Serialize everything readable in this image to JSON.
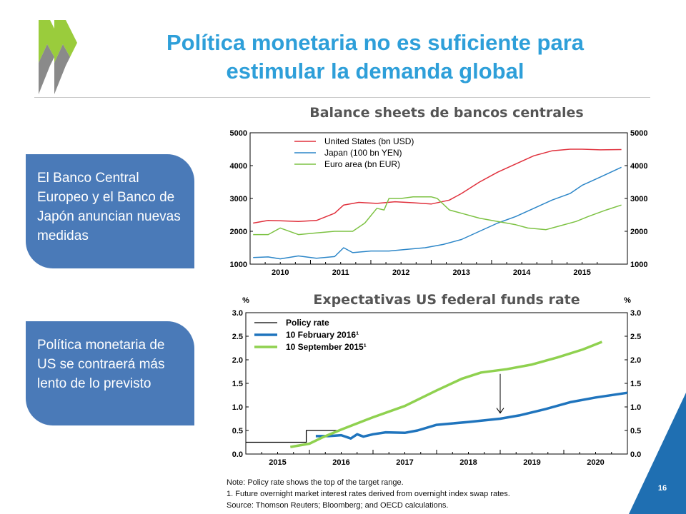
{
  "slide": {
    "title_line1": "Política monetaria no es suficiente para",
    "title_line2": "estimular la demanda global",
    "page_number": "16",
    "accent_color": "#2e9fd9",
    "pill_color": "#4a7ab8",
    "corner_color": "#1f6fb2"
  },
  "callouts": [
    {
      "text": "El Banco Central Europeo y el Banco de Japón anuncian nuevas medidas"
    },
    {
      "text": "Política monetaria de US se contraerá más lento de lo previsto"
    }
  ],
  "notes": {
    "line1": "Note: Policy rate shows the top of the target range.",
    "line2": "1. Future overnight market interest rates derived from overnight index swap rates.",
    "line3": "Source: Thomson Reuters; Bloomberg; and OECD calculations."
  },
  "chart_data": [
    {
      "type": "line",
      "title": "Balance sheets de bancos centrales",
      "ylim": [
        1000,
        5000
      ],
      "yticks": [
        "1000",
        "2000",
        "3000",
        "4000",
        "5000"
      ],
      "xlim": [
        2009.5,
        2015.75
      ],
      "xticks": [
        "2010",
        "2011",
        "2012",
        "2013",
        "2014",
        "2015"
      ],
      "grid": false,
      "legend_position": "top-left",
      "series": [
        {
          "name": "United States (bn USD)",
          "color": "#e0303c",
          "x": [
            2009.55,
            2009.8,
            2010.0,
            2010.3,
            2010.6,
            2010.9,
            2011.05,
            2011.3,
            2011.6,
            2011.9,
            2012.2,
            2012.5,
            2012.8,
            2013.0,
            2013.3,
            2013.6,
            2013.9,
            2014.2,
            2014.5,
            2014.8,
            2015.0,
            2015.3,
            2015.65
          ],
          "y": [
            2250,
            2330,
            2320,
            2300,
            2330,
            2550,
            2800,
            2880,
            2850,
            2900,
            2870,
            2830,
            2950,
            3150,
            3500,
            3800,
            4050,
            4300,
            4450,
            4500,
            4500,
            4480,
            4490
          ]
        },
        {
          "name": "Japan (100 bn YEN)",
          "color": "#2c86c8",
          "x": [
            2009.55,
            2009.8,
            2010.0,
            2010.3,
            2010.6,
            2010.9,
            2011.05,
            2011.2,
            2011.5,
            2011.8,
            2012.1,
            2012.4,
            2012.7,
            2013.0,
            2013.3,
            2013.6,
            2013.9,
            2014.2,
            2014.5,
            2014.8,
            2015.0,
            2015.3,
            2015.65
          ],
          "y": [
            1200,
            1220,
            1160,
            1250,
            1180,
            1230,
            1500,
            1350,
            1400,
            1400,
            1450,
            1500,
            1600,
            1750,
            2000,
            2250,
            2450,
            2700,
            2950,
            3150,
            3400,
            3650,
            3950
          ]
        },
        {
          "name": "Euro area (bn EUR)",
          "color": "#7dc243",
          "x": [
            2009.55,
            2009.8,
            2010.0,
            2010.3,
            2010.6,
            2010.9,
            2011.2,
            2011.4,
            2011.6,
            2011.72,
            2011.8,
            2012.0,
            2012.2,
            2012.5,
            2012.6,
            2012.8,
            2013.0,
            2013.3,
            2013.6,
            2013.9,
            2014.1,
            2014.4,
            2014.6,
            2014.9,
            2015.1,
            2015.4,
            2015.65
          ],
          "y": [
            1900,
            1900,
            2100,
            1900,
            1950,
            2000,
            2000,
            2250,
            2700,
            2650,
            3000,
            3000,
            3050,
            3050,
            3000,
            2650,
            2550,
            2400,
            2300,
            2200,
            2100,
            2050,
            2150,
            2300,
            2450,
            2650,
            2800
          ]
        }
      ]
    },
    {
      "type": "line",
      "title": "Expectativas US federal funds rate",
      "ylabel_left": "%",
      "ylabel_right": "%",
      "ylim": [
        0.0,
        3.0
      ],
      "yticks": [
        "0.0",
        "0.5",
        "1.0",
        "1.5",
        "2.0",
        "2.5",
        "3.0"
      ],
      "xlim": [
        2014.5,
        2020.5
      ],
      "xticks": [
        "2015",
        "2016",
        "2017",
        "2018",
        "2019",
        "2020"
      ],
      "grid": false,
      "legend_position": "top-left",
      "series": [
        {
          "name": "Policy rate",
          "color": "#000000",
          "step": true,
          "x": [
            2014.5,
            2015.45,
            2015.45,
            2015.95
          ],
          "y": [
            0.25,
            0.25,
            0.5,
            0.5
          ]
        },
        {
          "name": "10 February 2016¹",
          "color": "#1f74bd",
          "x": [
            2015.6,
            2015.8,
            2016.0,
            2016.15,
            2016.25,
            2016.35,
            2016.5,
            2016.7,
            2017.0,
            2017.2,
            2017.5,
            2018.0,
            2018.5,
            2018.8,
            2019.2,
            2019.6,
            2020.0,
            2020.5
          ],
          "y": [
            0.38,
            0.38,
            0.4,
            0.33,
            0.42,
            0.37,
            0.42,
            0.46,
            0.45,
            0.5,
            0.62,
            0.68,
            0.75,
            0.82,
            0.95,
            1.1,
            1.2,
            1.3
          ]
        },
        {
          "name": "10 September 2015¹",
          "color": "#8fd14f",
          "x": [
            2015.2,
            2015.5,
            2015.7,
            2016.0,
            2016.5,
            2017.0,
            2017.5,
            2017.9,
            2018.2,
            2018.6,
            2019.0,
            2019.4,
            2019.8,
            2020.1
          ],
          "y": [
            0.15,
            0.22,
            0.35,
            0.52,
            0.78,
            1.02,
            1.35,
            1.6,
            1.73,
            1.8,
            1.9,
            2.05,
            2.22,
            2.38
          ]
        }
      ],
      "annotations": [
        {
          "type": "arrow",
          "x": 2018.5,
          "y_from": 1.7,
          "y_to": 0.87
        }
      ]
    }
  ]
}
